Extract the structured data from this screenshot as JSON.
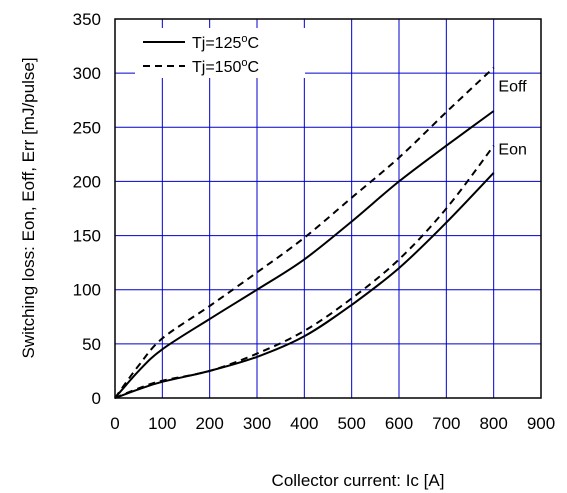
{
  "chart_data": {
    "type": "line",
    "title": "",
    "xlabel": "Collector current: Ic [A]",
    "ylabel": "Switching loss: Eon, Eoff, Err [mJ/pulse]",
    "xlim": [
      0,
      900
    ],
    "ylim": [
      0,
      350
    ],
    "xticks": [
      0,
      100,
      200,
      300,
      400,
      500,
      600,
      700,
      800,
      900
    ],
    "yticks": [
      0,
      50,
      100,
      150,
      200,
      250,
      300,
      350
    ],
    "grid": true,
    "grid_color": "#0000cc",
    "legend": {
      "placement": "top-left",
      "entries": [
        {
          "label": "Tj=125",
          "sup": "o",
          "unit": "C",
          "style": "solid"
        },
        {
          "label": "Tj=150",
          "sup": "o",
          "unit": "C",
          "style": "dashed"
        }
      ]
    },
    "annotations": [
      {
        "text": "Eoff",
        "x": 810,
        "y": 283
      },
      {
        "text": "Eon",
        "x": 810,
        "y": 225
      }
    ],
    "series": [
      {
        "curve": "Eoff",
        "style": "solid",
        "x": [
          0,
          50,
          100,
          200,
          300,
          400,
          500,
          600,
          700,
          800
        ],
        "y": [
          0,
          25,
          45,
          73,
          100,
          128,
          163,
          200,
          233,
          265
        ]
      },
      {
        "curve": "Eoff",
        "style": "dashed",
        "x": [
          0,
          50,
          100,
          200,
          300,
          400,
          500,
          600,
          700,
          800
        ],
        "y": [
          0,
          30,
          55,
          85,
          116,
          148,
          185,
          222,
          264,
          305
        ]
      },
      {
        "curve": "Eon",
        "style": "solid",
        "x": [
          0,
          50,
          100,
          200,
          300,
          400,
          500,
          600,
          700,
          800
        ],
        "y": [
          0,
          8,
          15,
          25,
          38,
          57,
          86,
          120,
          162,
          208
        ]
      },
      {
        "curve": "Eon",
        "style": "dashed",
        "x": [
          0,
          50,
          100,
          200,
          300,
          400,
          500,
          600,
          700,
          800
        ],
        "y": [
          0,
          9,
          16,
          25,
          41,
          62,
          92,
          128,
          175,
          233
        ]
      }
    ]
  }
}
